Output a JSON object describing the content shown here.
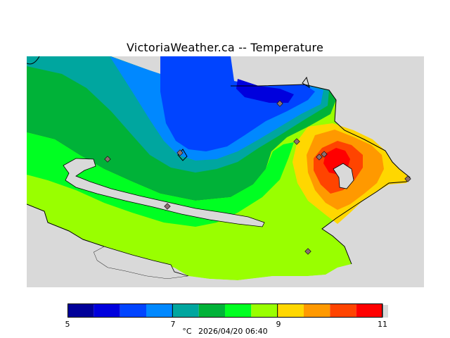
{
  "title": "VictoriaWeather.ca -- Temperature",
  "legend": {
    "unit": "°C",
    "timestamp": "2026/04/20 06:40",
    "min": 5,
    "max": 11,
    "tick_labels": [
      "5",
      "7",
      "9",
      "11"
    ],
    "bins": [
      {
        "from": 5.0,
        "to": 5.5,
        "color": "#000099"
      },
      {
        "from": 5.5,
        "to": 6.0,
        "color": "#0000dd"
      },
      {
        "from": 6.0,
        "to": 6.5,
        "color": "#0044ff"
      },
      {
        "from": 6.5,
        "to": 7.0,
        "color": "#0088ff"
      },
      {
        "from": 7.0,
        "to": 7.5,
        "color": "#00a69f"
      },
      {
        "from": 7.5,
        "to": 8.0,
        "color": "#00b238"
      },
      {
        "from": 8.0,
        "to": 8.5,
        "color": "#00ff22"
      },
      {
        "from": 8.5,
        "to": 9.0,
        "color": "#99ff00"
      },
      {
        "from": 9.0,
        "to": 9.5,
        "color": "#ffd700"
      },
      {
        "from": 9.5,
        "to": 10.0,
        "color": "#ff9900"
      },
      {
        "from": 10.0,
        "to": 10.5,
        "color": "#ff4400"
      },
      {
        "from": 10.5,
        "to": 11.0,
        "color": "#ff0000"
      }
    ]
  },
  "colors": {
    "no_data": "#d9d9d9",
    "station_marker": "#8b6f6f",
    "coastline": "#000000"
  }
}
